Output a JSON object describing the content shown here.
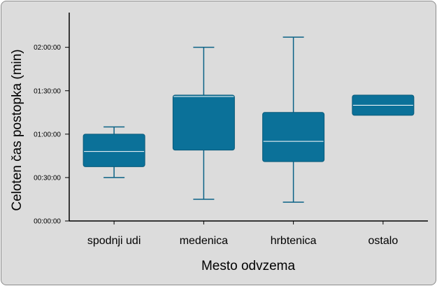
{
  "chart_data": {
    "type": "box",
    "xlabel": "Mesto odvzema",
    "ylabel": "Celoten čas postopka (min)",
    "ylim": [
      0,
      8640
    ],
    "y_ticks": [
      {
        "value": 0,
        "label": "00:00:00"
      },
      {
        "value": 1800,
        "label": "00:30:00"
      },
      {
        "value": 3600,
        "label": "01:00:00"
      },
      {
        "value": 5400,
        "label": "01:30:00"
      },
      {
        "value": 7200,
        "label": "02:00:00"
      }
    ],
    "categories": [
      "spodnji udi",
      "medenica",
      "hrbtenica",
      "ostalo"
    ],
    "boxes": [
      {
        "category": "spodnji udi",
        "min": 1800,
        "q1": 2250,
        "median": 2880,
        "q3": 3600,
        "max": 3900
      },
      {
        "category": "medenica",
        "min": 900,
        "q1": 2940,
        "median": 5160,
        "q3": 5220,
        "max": 7200
      },
      {
        "category": "hrbtenica",
        "min": 780,
        "q1": 2460,
        "median": 3300,
        "q3": 4500,
        "max": 7620
      },
      {
        "category": "ostalo",
        "min": null,
        "q1": 4380,
        "median": 4800,
        "q3": 5220,
        "max": null
      }
    ],
    "box_color": "#0b7199",
    "median_color": "#ffffff",
    "grid": false
  }
}
